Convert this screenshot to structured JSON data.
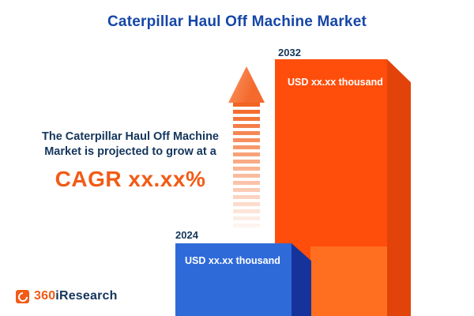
{
  "title": "Caterpillar Haul Off Machine Market",
  "description": {
    "line1": "The Caterpillar Haul Off Machine",
    "line2": "Market is projected to grow at a",
    "cagr": "CAGR xx.xx%"
  },
  "chart_data": {
    "type": "bar",
    "title": "Caterpillar Haul Off Machine Market",
    "categories": [
      "2024",
      "2032"
    ],
    "values": [
      "USD xx.xx thousand",
      "USD xx.xx thousand"
    ],
    "xlabel": "",
    "ylabel": "",
    "legend_position": "none",
    "grid": false,
    "bar_colors": [
      "#2f6ad9",
      "#ff4e0c"
    ],
    "annotations": [
      "The Caterpillar Haul Off Machine Market is projected to grow at a CAGR xx.xx%"
    ]
  },
  "logo": {
    "part1": "360",
    "part2": "i",
    "part3": "Research"
  },
  "colors": {
    "title_blue": "#1646a8",
    "navy_text": "#14365c",
    "accent_orange": "#f25b16",
    "bar_2024_front": "#2f6ad9",
    "bar_2024_side": "#16339c",
    "bar_2032_front": "#ff4e0c",
    "bar_2032_side": "#e2430a"
  }
}
